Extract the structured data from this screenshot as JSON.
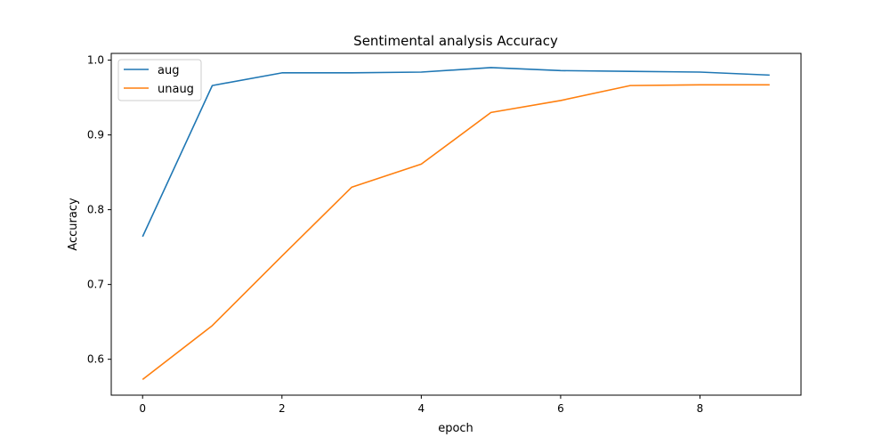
{
  "chart_data": {
    "type": "line",
    "title": "Sentimental analysis Accuracy",
    "xlabel": "epoch",
    "ylabel": "Accuracy",
    "x": [
      0,
      1,
      2,
      3,
      4,
      5,
      6,
      7,
      8,
      9
    ],
    "xlim": [
      -0.45,
      9.45
    ],
    "ylim": [
      0.552,
      1.009
    ],
    "xticks": [
      0,
      2,
      4,
      6,
      8
    ],
    "yticks": [
      0.6,
      0.7,
      0.8,
      0.9,
      1.0
    ],
    "ytick_labels": [
      "0.6",
      "0.7",
      "0.8",
      "0.9",
      "1.0"
    ],
    "grid": false,
    "legend_position": "top-left",
    "series": [
      {
        "name": "aug",
        "color": "#1f77b4",
        "values": [
          0.764,
          0.966,
          0.983,
          0.983,
          0.984,
          0.99,
          0.986,
          0.985,
          0.984,
          0.98
        ]
      },
      {
        "name": "unaug",
        "color": "#ff7f0e",
        "values": [
          0.573,
          0.645,
          0.738,
          0.83,
          0.861,
          0.93,
          0.946,
          0.966,
          0.967,
          0.967
        ]
      }
    ]
  }
}
